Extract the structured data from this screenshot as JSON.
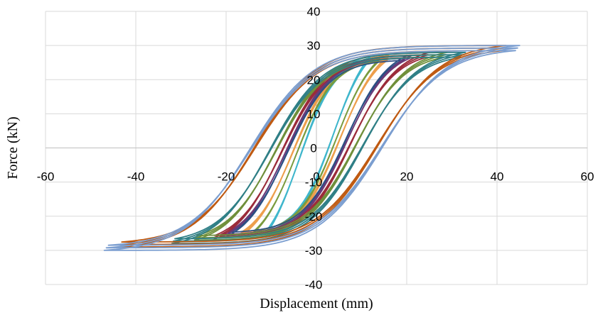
{
  "chart_data": {
    "type": "line",
    "title": "",
    "xlabel": "Displacement (mm)",
    "ylabel": "Force (kN)",
    "xlim": [
      -60,
      60
    ],
    "ylim": [
      -40,
      40
    ],
    "xticks": [
      -60,
      -40,
      -20,
      0,
      20,
      40,
      60
    ],
    "yticks": [
      -40,
      -30,
      -20,
      -10,
      0,
      10,
      20,
      30,
      40
    ],
    "grid": true,
    "legend": "none",
    "series": [
      {
        "color": "#ed9f4c",
        "dpos": 16,
        "dneg": -17,
        "fpos": 27,
        "fneg": -26,
        "cycles": 3
      },
      {
        "color": "#3fb6cc",
        "dpos": 12,
        "dneg": -11,
        "fpos": 27,
        "fneg": -25,
        "cycles": 3
      },
      {
        "color": "#7a9b3e",
        "dpos": 14,
        "dneg": -14,
        "fpos": 26,
        "fneg": -25,
        "cycles": 2
      },
      {
        "color": "#2c4f84",
        "dpos": 20,
        "dneg": -20,
        "fpos": 27,
        "fneg": -26,
        "cycles": 3
      },
      {
        "color": "#6a3a78",
        "dpos": 21,
        "dneg": -21,
        "fpos": 27,
        "fneg": -26,
        "cycles": 2
      },
      {
        "color": "#9b2b3a",
        "dpos": 25,
        "dneg": -23,
        "fpos": 28,
        "fneg": -27,
        "cycles": 3
      },
      {
        "color": "#6f8f3a",
        "dpos": 29,
        "dneg": -27,
        "fpos": 28,
        "fneg": -27,
        "cycles": 3
      },
      {
        "color": "#2f7f86",
        "dpos": 33,
        "dneg": -32,
        "fpos": 28,
        "fneg": -28,
        "cycles": 3
      },
      {
        "color": "#bf5a12",
        "dpos": 42,
        "dneg": -44,
        "fpos": 30,
        "fneg": -29,
        "cycles": 3
      },
      {
        "color": "#7b9ed0",
        "dpos": 45,
        "dneg": -47,
        "fpos": 30,
        "fneg": -30,
        "cycles": 3
      }
    ]
  }
}
